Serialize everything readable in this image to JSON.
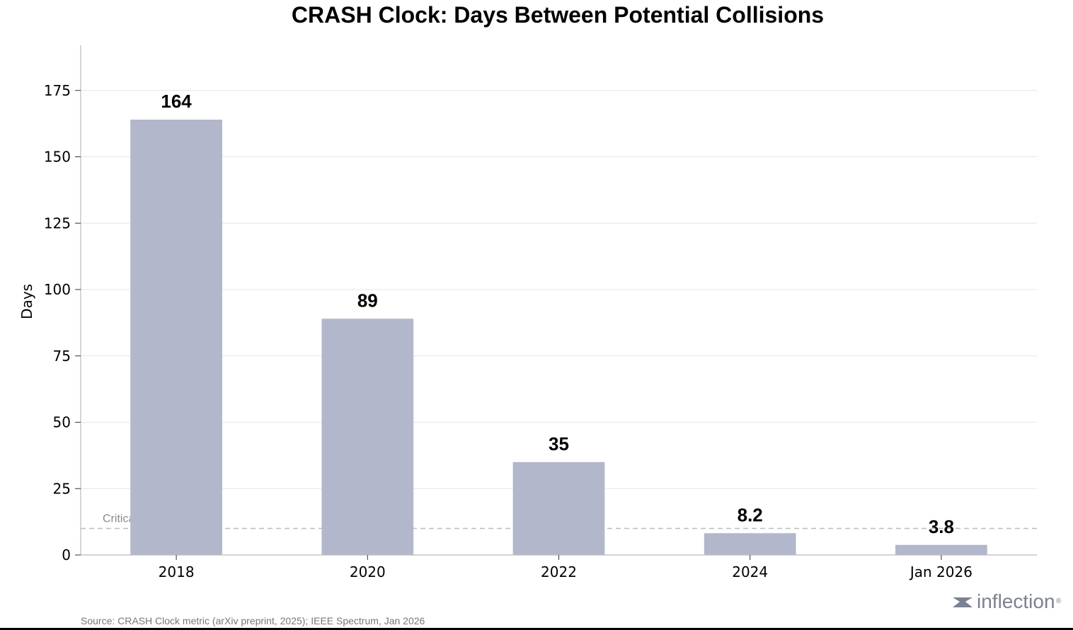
{
  "chart_data": {
    "type": "bar",
    "title": "CRASH Clock: Days Between Potential Collisions",
    "xlabel": "",
    "ylabel": "Days",
    "categories": [
      "2018",
      "2020",
      "2022",
      "2024",
      "Jan 2026"
    ],
    "values": [
      164,
      89,
      35,
      8.2,
      3.8
    ],
    "value_labels": [
      "164",
      "89",
      "35",
      "8.2",
      "3.8"
    ],
    "ylim": [
      0,
      192
    ],
    "yticks": [
      0,
      25,
      50,
      75,
      100,
      125,
      150,
      175
    ],
    "grid": "horizontal",
    "bar_color": "#b3b7cb",
    "threshold": {
      "value": 10,
      "label": "Critical Threshold",
      "color": "#bbbbbb"
    }
  },
  "source": "Source: CRASH Clock metric (arXiv preprint, 2025); IEEE Spectrum, Jan 2026",
  "logo": {
    "text": "inflection",
    "mark": "®",
    "icon": "inflection-logo-icon"
  }
}
